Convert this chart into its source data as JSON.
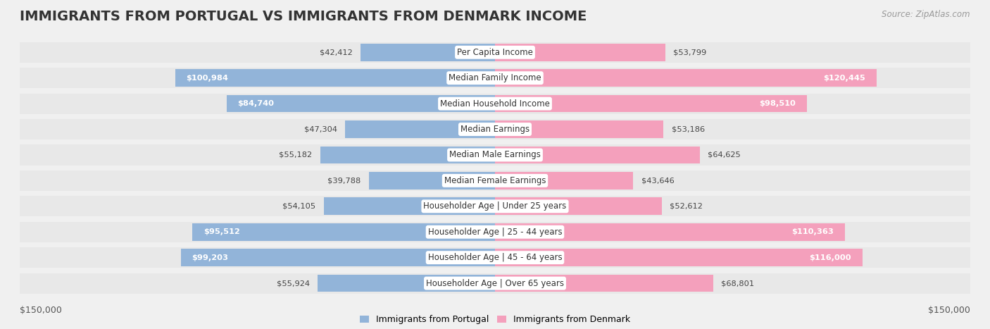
{
  "title": "IMMIGRANTS FROM PORTUGAL VS IMMIGRANTS FROM DENMARK INCOME",
  "source": "Source: ZipAtlas.com",
  "categories": [
    "Per Capita Income",
    "Median Family Income",
    "Median Household Income",
    "Median Earnings",
    "Median Male Earnings",
    "Median Female Earnings",
    "Householder Age | Under 25 years",
    "Householder Age | 25 - 44 years",
    "Householder Age | 45 - 64 years",
    "Householder Age | Over 65 years"
  ],
  "portugal_values": [
    42412,
    100984,
    84740,
    47304,
    55182,
    39788,
    54105,
    95512,
    99203,
    55924
  ],
  "denmark_values": [
    53799,
    120445,
    98510,
    53186,
    64625,
    43646,
    52612,
    110363,
    116000,
    68801
  ],
  "portugal_labels": [
    "$42,412",
    "$100,984",
    "$84,740",
    "$47,304",
    "$55,182",
    "$39,788",
    "$54,105",
    "$95,512",
    "$99,203",
    "$55,924"
  ],
  "denmark_labels": [
    "$53,799",
    "$120,445",
    "$98,510",
    "$53,186",
    "$64,625",
    "$43,646",
    "$52,612",
    "$110,363",
    "$116,000",
    "$68,801"
  ],
  "portugal_large": [
    false,
    true,
    true,
    false,
    false,
    false,
    false,
    true,
    true,
    false
  ],
  "denmark_large": [
    false,
    true,
    true,
    false,
    false,
    false,
    false,
    true,
    true,
    false
  ],
  "max_value": 150000,
  "portugal_color": "#92b4d9",
  "denmark_color": "#f4a0bc",
  "background_color": "#f0f0f0",
  "row_bg_color": "#e8e8e8",
  "title_fontsize": 14,
  "label_fontsize": 8.5,
  "value_fontsize": 8.2,
  "legend_label_portugal": "Immigrants from Portugal",
  "legend_label_denmark": "Immigrants from Denmark"
}
